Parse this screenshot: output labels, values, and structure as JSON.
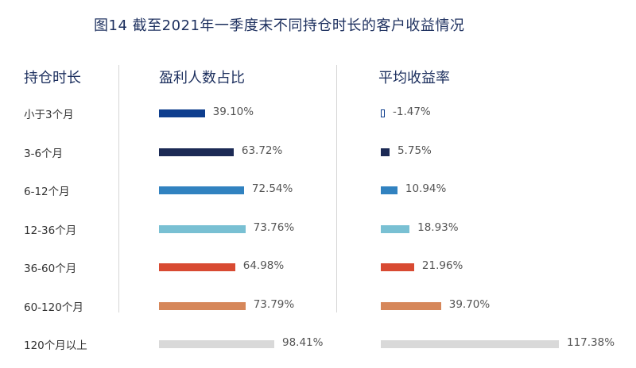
{
  "title": "图14   截至2021年一季度末不同持仓时长的客户收益情况",
  "headers": {
    "holding": "持仓时长",
    "profit_ratio": "盈利人数占比",
    "avg_return": "平均收益率"
  },
  "chart_data": {
    "type": "bar",
    "orientation": "horizontal",
    "title": "图14   截至2021年一季度末不同持仓时长的客户收益情况",
    "categories": [
      "小于3个月",
      "3-6个月",
      "6-12个月",
      "12-36个月",
      "36-60个月",
      "60-120个月",
      "120个月以上"
    ],
    "panels": [
      {
        "name": "盈利人数占比",
        "values": [
          39.1,
          63.72,
          72.54,
          73.76,
          64.98,
          73.79,
          98.41
        ],
        "labels": [
          "39.10%",
          "63.72%",
          "72.54%",
          "73.76%",
          "64.98%",
          "73.79%",
          "98.41%"
        ],
        "unit": "%"
      },
      {
        "name": "平均收益率",
        "values": [
          -1.47,
          5.75,
          10.94,
          18.93,
          21.96,
          39.7,
          117.38
        ],
        "labels": [
          "-1.47%",
          "5.75%",
          "10.94%",
          "18.93%",
          "21.96%",
          "39.70%",
          "117.38%"
        ],
        "unit": "%"
      }
    ],
    "colors": [
      "#0e3e8e",
      "#1c2a55",
      "#3182c0",
      "#79c0d3",
      "#d84a32",
      "#d6875a",
      "#d9d9d9"
    ],
    "grid": false,
    "legend": "none"
  }
}
